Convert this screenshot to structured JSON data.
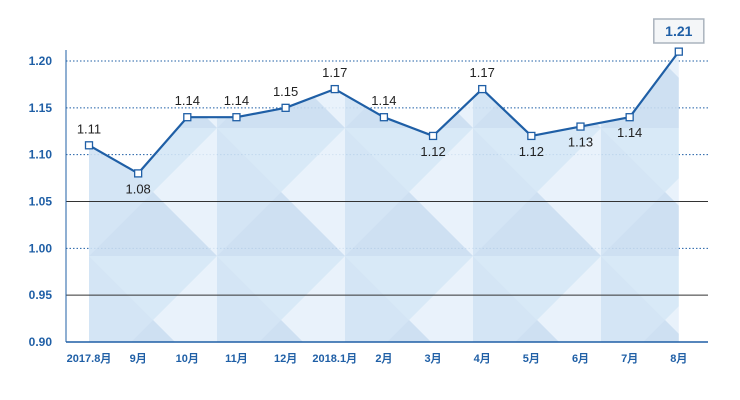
{
  "chart_data": {
    "type": "area",
    "title": "",
    "xlabel": "",
    "ylabel": "",
    "categories": [
      "2017.8月",
      "9月",
      "10月",
      "11月",
      "12月",
      "2018.1月",
      "2月",
      "3月",
      "4月",
      "5月",
      "6月",
      "7月",
      "8月"
    ],
    "series": [
      {
        "values": [
          1.11,
          1.08,
          1.14,
          1.14,
          1.15,
          1.17,
          1.14,
          1.12,
          1.17,
          1.12,
          1.13,
          1.14,
          1.21
        ],
        "labels": [
          "1.11",
          "1.08",
          "1.14",
          "1.14",
          "1.15",
          "1.17",
          "1.14",
          "1.12",
          "1.17",
          "1.12",
          "1.13",
          "1.14",
          "1.21"
        ]
      }
    ],
    "ylim": [
      0.9,
      1.2
    ],
    "yticks": [
      0.9,
      0.95,
      1.0,
      1.05,
      1.1,
      1.15,
      1.2
    ],
    "ytick_labels": [
      "0.90",
      "0.95",
      "1.00",
      "1.05",
      "1.10",
      "1.15",
      "1.20"
    ],
    "solid_gridlines": [
      0.95,
      1.05
    ],
    "dotted_gridlines": [
      1.0,
      1.1,
      1.15,
      1.2
    ],
    "grid": true,
    "legend": "none",
    "colors": {
      "line": "#1f5fa6",
      "axis_text": "#1f5fa6",
      "fill": "#dcebf8",
      "highlight_box_border": "#aab3bd"
    }
  }
}
